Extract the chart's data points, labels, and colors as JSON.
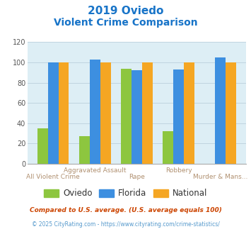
{
  "title_line1": "2019 Oviedo",
  "title_line2": "Violent Crime Comparison",
  "title_color": "#1874c8",
  "categories": [
    "All Violent Crime",
    "Aggravated Assault",
    "Rape",
    "Robbery",
    "Murder & Mans..."
  ],
  "cat_row": [
    2,
    1,
    2,
    1,
    2
  ],
  "oviedo": [
    35,
    27,
    94,
    32,
    0
  ],
  "florida": [
    100,
    103,
    92,
    93,
    105
  ],
  "national": [
    100,
    100,
    100,
    100,
    100
  ],
  "oviedo_color": "#8dc63f",
  "florida_color": "#3d8fe0",
  "national_color": "#f5a623",
  "ylim": [
    0,
    120
  ],
  "yticks": [
    0,
    20,
    40,
    60,
    80,
    100,
    120
  ],
  "plot_bg": "#ddeef5",
  "grid_color": "#c0d4e0",
  "xlabel_color": "#b09070",
  "legend_labels": [
    "Oviedo",
    "Florida",
    "National"
  ],
  "footnote1": "Compared to U.S. average. (U.S. average equals 100)",
  "footnote2": "© 2025 CityRating.com - https://www.cityrating.com/crime-statistics/",
  "footnote1_color": "#cc4400",
  "footnote2_color": "#5599cc"
}
